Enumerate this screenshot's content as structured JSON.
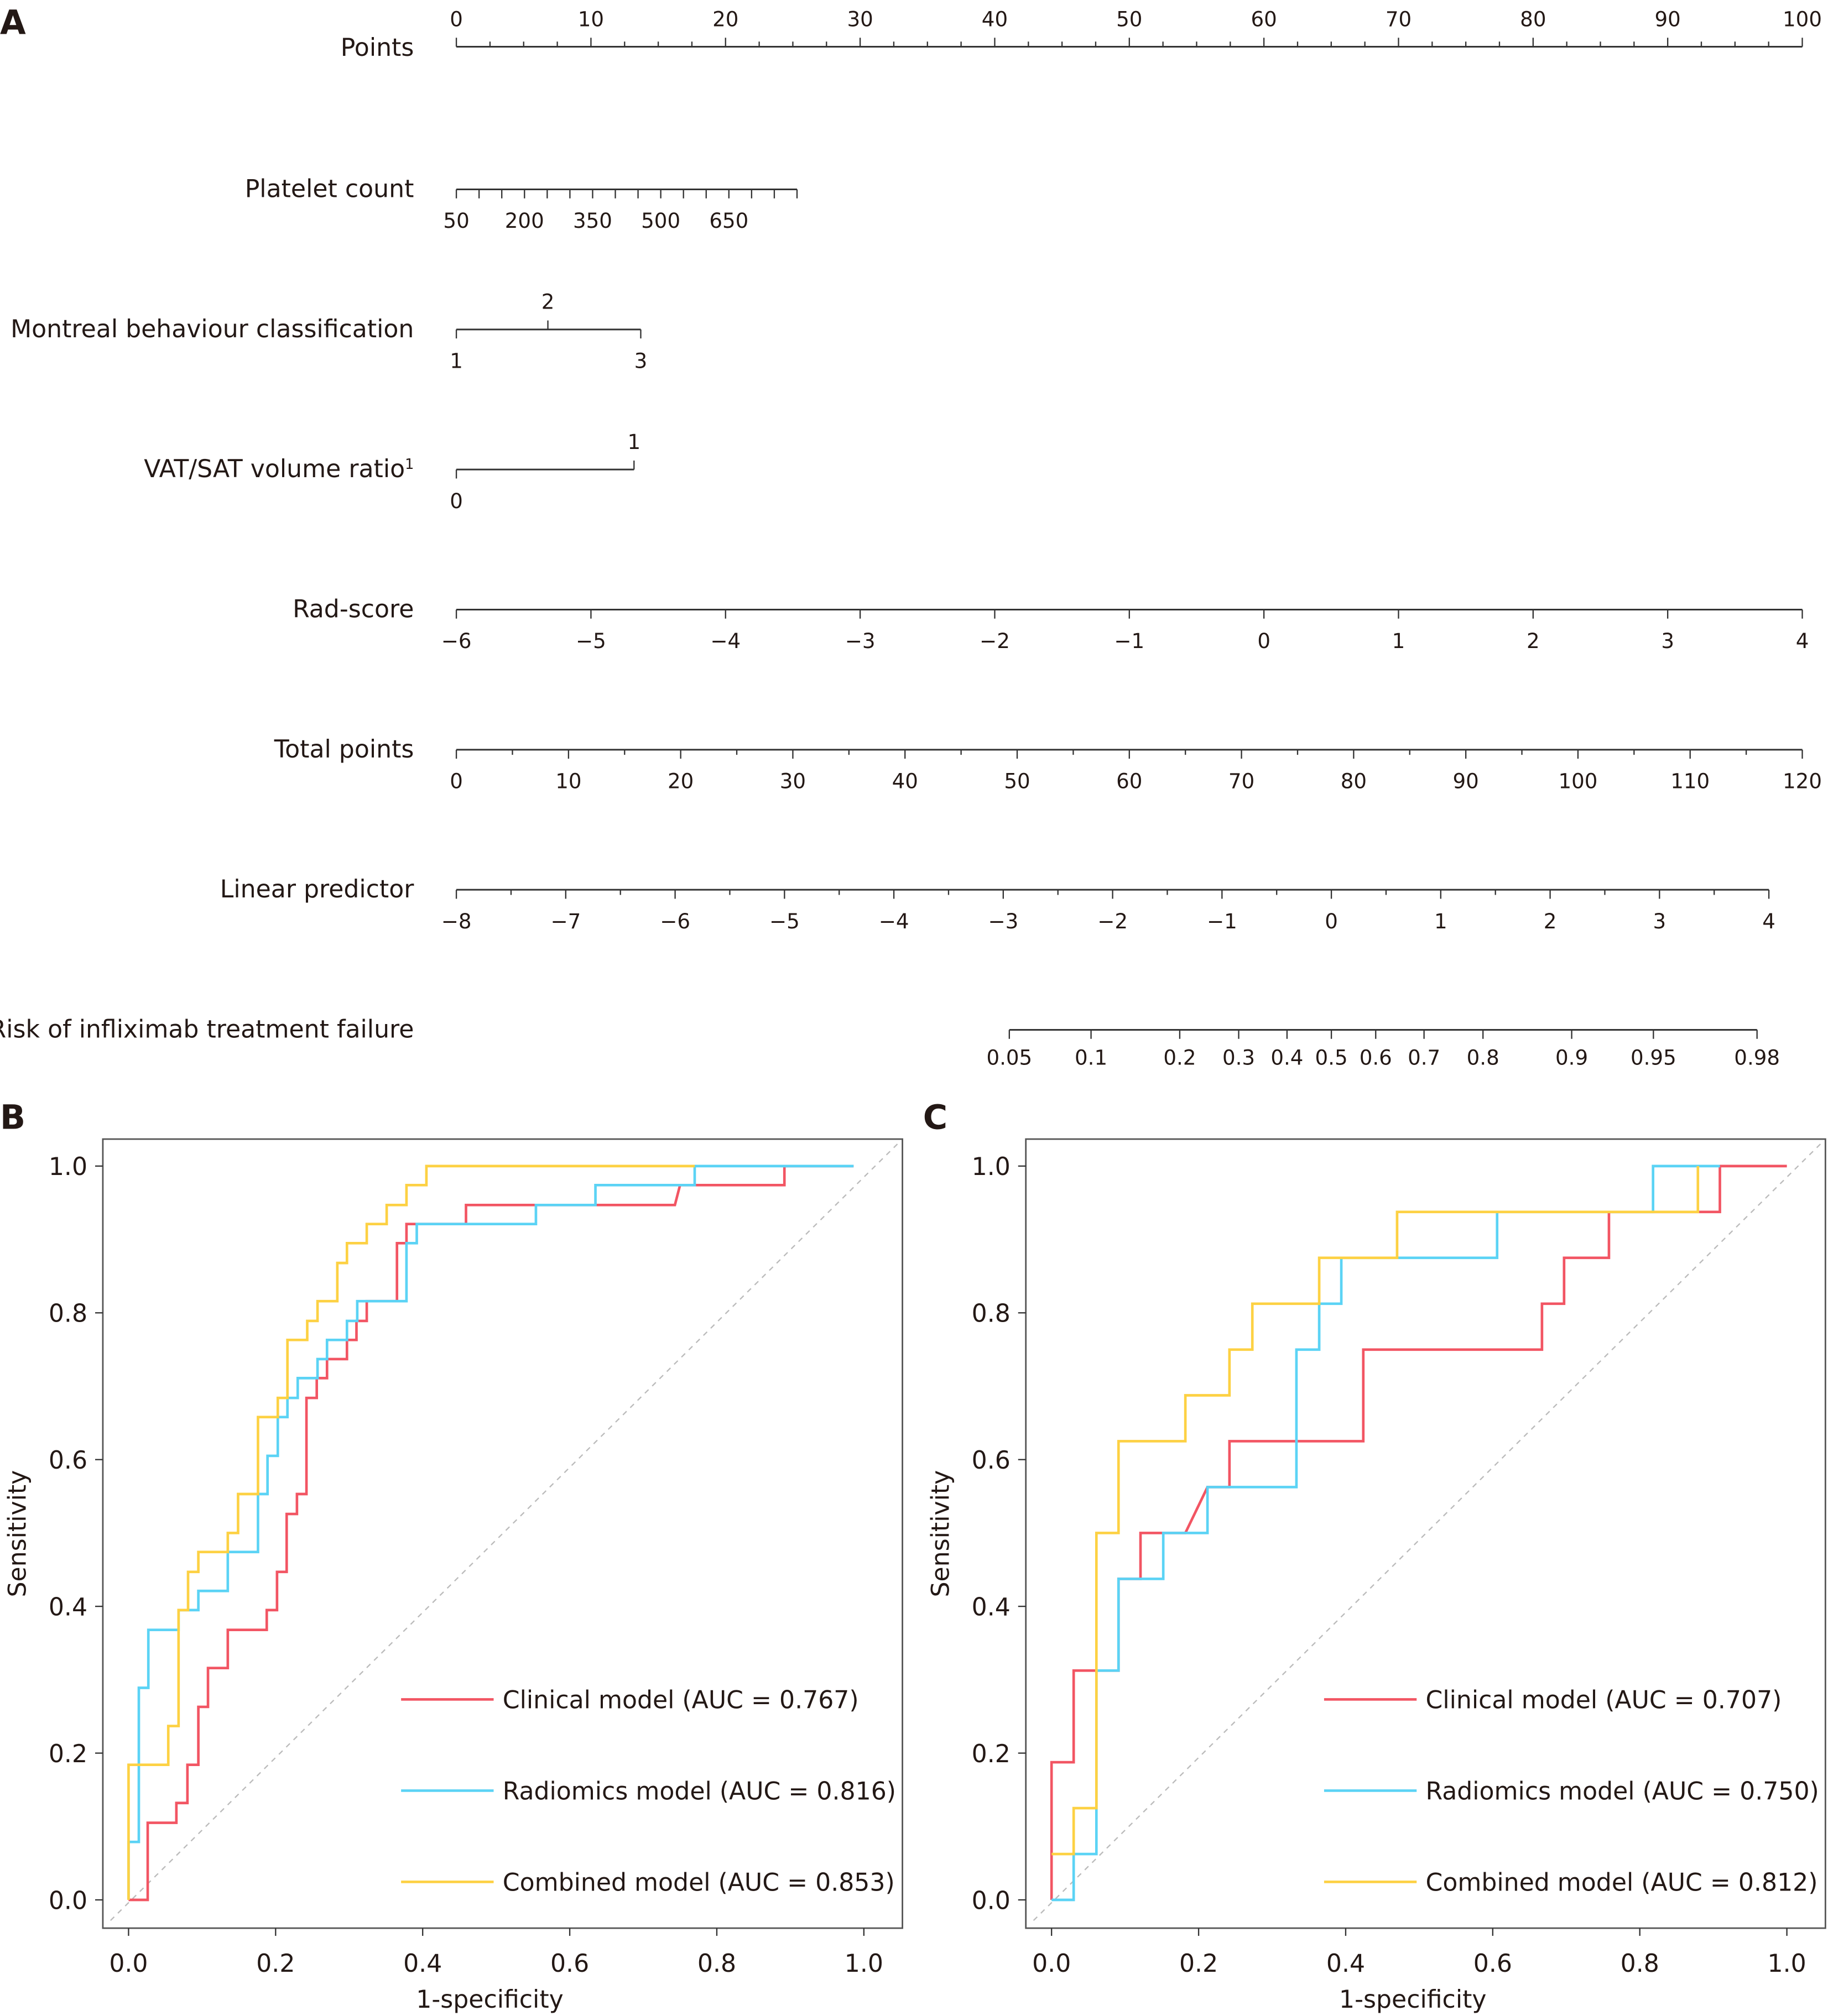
{
  "panels": {
    "a": "A",
    "b": "B",
    "c": "C"
  },
  "chart_data": [
    {
      "type": "nomogram",
      "title": "",
      "rows": [
        {
          "name": "Points",
          "min": 0,
          "max": 100,
          "ticks": [
            0,
            10,
            20,
            30,
            40,
            50,
            60,
            70,
            80,
            90,
            100
          ],
          "minor_step": 2.5,
          "labels_above": true
        },
        {
          "name": "Platelet count",
          "min": 50,
          "max": 800,
          "point_range": [
            0,
            25.3
          ],
          "ticks": [
            50,
            100,
            150,
            200,
            250,
            300,
            350,
            400,
            450,
            500,
            550,
            600,
            650,
            700,
            750,
            800
          ],
          "tick_labels": [
            "50",
            "200",
            "350",
            "500",
            "650"
          ]
        },
        {
          "name": "Montreal behaviour classification",
          "categories": [
            "1",
            "2",
            "3"
          ],
          "points": [
            0,
            6.8,
            13.7
          ]
        },
        {
          "name": "VAT/SAT volume ratio",
          "superscript": "1",
          "categories": [
            "0",
            "1"
          ],
          "points": [
            0,
            13.2
          ]
        },
        {
          "name": "Rad-score",
          "min": -6,
          "max": 4,
          "ticks": [
            "−6",
            "−5",
            "−4",
            "−3",
            "−2",
            "−1",
            "0",
            "1",
            "2",
            "3",
            "4"
          ]
        },
        {
          "name": "Total points",
          "min": 0,
          "max": 120,
          "ticks": [
            0,
            10,
            20,
            30,
            40,
            50,
            60,
            70,
            80,
            90,
            100,
            110,
            120
          ]
        },
        {
          "name": "Linear predictor",
          "min": -8,
          "max": 4,
          "ticks": [
            "−8",
            "−7",
            "−6",
            "−5",
            "−4",
            "−3",
            "−2",
            "−1",
            "0",
            "1",
            "2",
            "3",
            "4"
          ]
        },
        {
          "name": "Risk of infliximab treatment failure",
          "ticks": [
            0.05,
            0.1,
            0.2,
            0.3,
            0.4,
            0.5,
            0.6,
            0.7,
            0.8,
            0.9,
            0.95,
            0.98
          ]
        }
      ]
    },
    {
      "type": "line",
      "panel": "B",
      "xlabel": "1-specificity",
      "ylabel": "Sensitivity",
      "xlim": [
        0,
        1
      ],
      "ylim": [
        0,
        1
      ],
      "xticks": [
        "0.0",
        "0.2",
        "0.4",
        "0.6",
        "0.8",
        "1.0"
      ],
      "yticks": [
        "0.0",
        "0.2",
        "0.4",
        "0.6",
        "0.8",
        "1.0"
      ],
      "legend": "bottom-right",
      "series": [
        {
          "name": "Clinical model (AUC = 0.767)",
          "color": "#f25563",
          "points": [
            [
              0,
              0
            ],
            [
              0.026,
              0
            ],
            [
              0.026,
              0.105
            ],
            [
              0.065,
              0.105
            ],
            [
              0.065,
              0.132
            ],
            [
              0.08,
              0.132
            ],
            [
              0.08,
              0.184
            ],
            [
              0.095,
              0.184
            ],
            [
              0.095,
              0.263
            ],
            [
              0.108,
              0.263
            ],
            [
              0.108,
              0.316
            ],
            [
              0.135,
              0.316
            ],
            [
              0.135,
              0.368
            ],
            [
              0.188,
              0.368
            ],
            [
              0.188,
              0.395
            ],
            [
              0.202,
              0.395
            ],
            [
              0.202,
              0.447
            ],
            [
              0.215,
              0.447
            ],
            [
              0.215,
              0.526
            ],
            [
              0.229,
              0.526
            ],
            [
              0.229,
              0.553
            ],
            [
              0.242,
              0.553
            ],
            [
              0.242,
              0.684
            ],
            [
              0.256,
              0.684
            ],
            [
              0.256,
              0.711
            ],
            [
              0.27,
              0.711
            ],
            [
              0.27,
              0.737
            ],
            [
              0.297,
              0.737
            ],
            [
              0.297,
              0.763
            ],
            [
              0.31,
              0.763
            ],
            [
              0.31,
              0.789
            ],
            [
              0.324,
              0.789
            ],
            [
              0.324,
              0.816
            ],
            [
              0.365,
              0.816
            ],
            [
              0.365,
              0.895
            ],
            [
              0.378,
              0.895
            ],
            [
              0.378,
              0.921
            ],
            [
              0.459,
              0.921
            ],
            [
              0.459,
              0.947
            ],
            [
              0.743,
              0.947
            ],
            [
              0.75,
              0.974
            ],
            [
              0.892,
              0.974
            ],
            [
              0.892,
              1
            ],
            [
              0.986,
              1
            ]
          ]
        },
        {
          "name": "Radiomics model (AUC = 0.816)",
          "color": "#5bd3f5",
          "points": [
            [
              0,
              0
            ],
            [
              0,
              0.079
            ],
            [
              0.014,
              0.079
            ],
            [
              0.014,
              0.289
            ],
            [
              0.027,
              0.289
            ],
            [
              0.027,
              0.368
            ],
            [
              0.068,
              0.368
            ],
            [
              0.068,
              0.395
            ],
            [
              0.095,
              0.395
            ],
            [
              0.095,
              0.421
            ],
            [
              0.135,
              0.421
            ],
            [
              0.135,
              0.474
            ],
            [
              0.176,
              0.474
            ],
            [
              0.176,
              0.553
            ],
            [
              0.189,
              0.553
            ],
            [
              0.189,
              0.605
            ],
            [
              0.203,
              0.605
            ],
            [
              0.203,
              0.658
            ],
            [
              0.216,
              0.658
            ],
            [
              0.216,
              0.684
            ],
            [
              0.23,
              0.684
            ],
            [
              0.23,
              0.711
            ],
            [
              0.257,
              0.711
            ],
            [
              0.257,
              0.737
            ],
            [
              0.27,
              0.737
            ],
            [
              0.27,
              0.763
            ],
            [
              0.297,
              0.763
            ],
            [
              0.297,
              0.789
            ],
            [
              0.311,
              0.789
            ],
            [
              0.311,
              0.816
            ],
            [
              0.378,
              0.816
            ],
            [
              0.378,
              0.895
            ],
            [
              0.392,
              0.895
            ],
            [
              0.392,
              0.921
            ],
            [
              0.554,
              0.921
            ],
            [
              0.554,
              0.947
            ],
            [
              0.635,
              0.947
            ],
            [
              0.635,
              0.974
            ],
            [
              0.77,
              0.974
            ],
            [
              0.77,
              1
            ],
            [
              0.986,
              1
            ]
          ]
        },
        {
          "name": "Combined model (AUC = 0.853)",
          "color": "#fdd143",
          "points": [
            [
              0,
              0
            ],
            [
              0,
              0.184
            ],
            [
              0.054,
              0.184
            ],
            [
              0.054,
              0.237
            ],
            [
              0.068,
              0.237
            ],
            [
              0.068,
              0.395
            ],
            [
              0.081,
              0.395
            ],
            [
              0.081,
              0.447
            ],
            [
              0.095,
              0.447
            ],
            [
              0.095,
              0.474
            ],
            [
              0.135,
              0.474
            ],
            [
              0.135,
              0.5
            ],
            [
              0.149,
              0.5
            ],
            [
              0.149,
              0.553
            ],
            [
              0.176,
              0.553
            ],
            [
              0.176,
              0.658
            ],
            [
              0.203,
              0.658
            ],
            [
              0.203,
              0.684
            ],
            [
              0.216,
              0.684
            ],
            [
              0.216,
              0.763
            ],
            [
              0.243,
              0.763
            ],
            [
              0.243,
              0.789
            ],
            [
              0.257,
              0.789
            ],
            [
              0.257,
              0.816
            ],
            [
              0.284,
              0.816
            ],
            [
              0.284,
              0.868
            ],
            [
              0.297,
              0.868
            ],
            [
              0.297,
              0.895
            ],
            [
              0.324,
              0.895
            ],
            [
              0.324,
              0.921
            ],
            [
              0.351,
              0.921
            ],
            [
              0.351,
              0.947
            ],
            [
              0.378,
              0.947
            ],
            [
              0.378,
              0.974
            ],
            [
              0.405,
              0.974
            ],
            [
              0.405,
              1
            ],
            [
              0.77,
              1
            ]
          ]
        }
      ]
    },
    {
      "type": "line",
      "panel": "C",
      "xlabel": "1-specificity",
      "ylabel": "Sensitivity",
      "xlim": [
        0,
        1
      ],
      "ylim": [
        0,
        1
      ],
      "xticks": [
        "0.0",
        "0.2",
        "0.4",
        "0.6",
        "0.8",
        "1.0"
      ],
      "yticks": [
        "0.0",
        "0.2",
        "0.4",
        "0.6",
        "0.8",
        "1.0"
      ],
      "legend": "bottom-right",
      "series": [
        {
          "name": "Clinical model (AUC = 0.707)",
          "color": "#f25563",
          "points": [
            [
              0,
              0
            ],
            [
              0,
              0.1875
            ],
            [
              0.03,
              0.1875
            ],
            [
              0.03,
              0.3125
            ],
            [
              0.091,
              0.3125
            ],
            [
              0.091,
              0.4375
            ],
            [
              0.121,
              0.4375
            ],
            [
              0.121,
              0.5
            ],
            [
              0.182,
              0.5
            ],
            [
              0.212,
              0.5625
            ],
            [
              0.242,
              0.5625
            ],
            [
              0.242,
              0.625
            ],
            [
              0.424,
              0.625
            ],
            [
              0.424,
              0.75
            ],
            [
              0.667,
              0.75
            ],
            [
              0.667,
              0.8125
            ],
            [
              0.697,
              0.8125
            ],
            [
              0.697,
              0.875
            ],
            [
              0.758,
              0.875
            ],
            [
              0.758,
              0.9375
            ],
            [
              0.909,
              0.9375
            ],
            [
              0.909,
              1
            ],
            [
              1,
              1
            ]
          ]
        },
        {
          "name": "Radiomics model (AUC = 0.750)",
          "color": "#5bd3f5",
          "points": [
            [
              0,
              0
            ],
            [
              0.03,
              0
            ],
            [
              0.03,
              0.0625
            ],
            [
              0.061,
              0.0625
            ],
            [
              0.061,
              0.3125
            ],
            [
              0.091,
              0.3125
            ],
            [
              0.091,
              0.4375
            ],
            [
              0.152,
              0.4375
            ],
            [
              0.152,
              0.5
            ],
            [
              0.212,
              0.5
            ],
            [
              0.212,
              0.5625
            ],
            [
              0.333,
              0.5625
            ],
            [
              0.333,
              0.75
            ],
            [
              0.364,
              0.75
            ],
            [
              0.364,
              0.8125
            ],
            [
              0.394,
              0.8125
            ],
            [
              0.394,
              0.875
            ],
            [
              0.606,
              0.875
            ],
            [
              0.606,
              0.9375
            ],
            [
              0.818,
              0.9375
            ],
            [
              0.818,
              1
            ],
            [
              0.909,
              1
            ]
          ]
        },
        {
          "name": "Combined model (AUC = 0.812)",
          "color": "#fdd143",
          "points": [
            [
              0,
              0.0625
            ],
            [
              0.03,
              0.0625
            ],
            [
              0.03,
              0.125
            ],
            [
              0.061,
              0.125
            ],
            [
              0.061,
              0.5
            ],
            [
              0.091,
              0.5
            ],
            [
              0.091,
              0.625
            ],
            [
              0.182,
              0.625
            ],
            [
              0.182,
              0.6875
            ],
            [
              0.242,
              0.6875
            ],
            [
              0.242,
              0.75
            ],
            [
              0.273,
              0.75
            ],
            [
              0.273,
              0.8125
            ],
            [
              0.364,
              0.8125
            ],
            [
              0.364,
              0.875
            ],
            [
              0.47,
              0.875
            ],
            [
              0.47,
              0.9375
            ],
            [
              0.879,
              0.9375
            ],
            [
              0.879,
              1
            ]
          ]
        }
      ]
    }
  ]
}
